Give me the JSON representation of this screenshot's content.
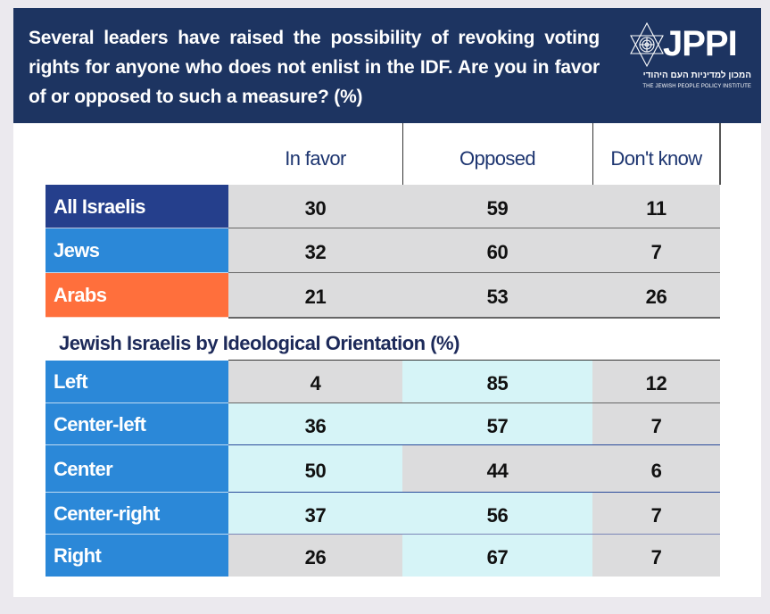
{
  "header": {
    "title": "Several leaders have raised the possibility of revoking voting rights for anyone who does not enlist in the IDF. Are you in favor of or opposed to such a measure? (%)",
    "logo": {
      "icon": "star-of-david-icon",
      "wordmark": "JPPI",
      "hebrew_name": "המכון למדיניות העם היהודי",
      "english_name": "THE JEWISH PEOPLE POLICY INSTITUTE"
    }
  },
  "colors": {
    "header_bg": "#1d3461",
    "all_israelis": "#253f8c",
    "jews": "#2b88d8",
    "arabs": "#ff6f3c",
    "ideology_label": "#2b88d8",
    "cell_gray": "#dcdcdd",
    "cell_cyan": "#d6f4f7"
  },
  "chart_data": {
    "type": "table",
    "title": "Several leaders have raised the possibility of revoking voting rights for anyone who does not enlist in the IDF. Are you in favor of or opposed to such a measure? (%)",
    "columns": [
      "In favor",
      "Opposed",
      "Don't know"
    ],
    "sections": [
      {
        "title": "",
        "rows": [
          {
            "label": "All Israelis",
            "values": [
              30,
              59,
              11
            ]
          },
          {
            "label": "Jews",
            "values": [
              32,
              60,
              7
            ]
          },
          {
            "label": "Arabs",
            "values": [
              21,
              53,
              26
            ]
          }
        ]
      },
      {
        "title": "Jewish Israelis by Ideological Orientation (%)",
        "rows": [
          {
            "label": "Left",
            "values": [
              4,
              85,
              12
            ]
          },
          {
            "label": "Center-left",
            "values": [
              36,
              57,
              7
            ]
          },
          {
            "label": "Center",
            "values": [
              50,
              44,
              6
            ]
          },
          {
            "label": "Center-right",
            "values": [
              37,
              56,
              7
            ]
          },
          {
            "label": "Right",
            "values": [
              26,
              67,
              7
            ]
          }
        ]
      }
    ],
    "highlight": {
      "rows_ideology": [
        [
          "gray",
          "cyan",
          "gray"
        ],
        [
          "cyan",
          "cyan",
          "gray"
        ],
        [
          "cyan",
          "gray",
          "gray"
        ],
        [
          "cyan",
          "cyan",
          "gray"
        ],
        [
          "gray",
          "cyan",
          "gray"
        ]
      ]
    }
  }
}
